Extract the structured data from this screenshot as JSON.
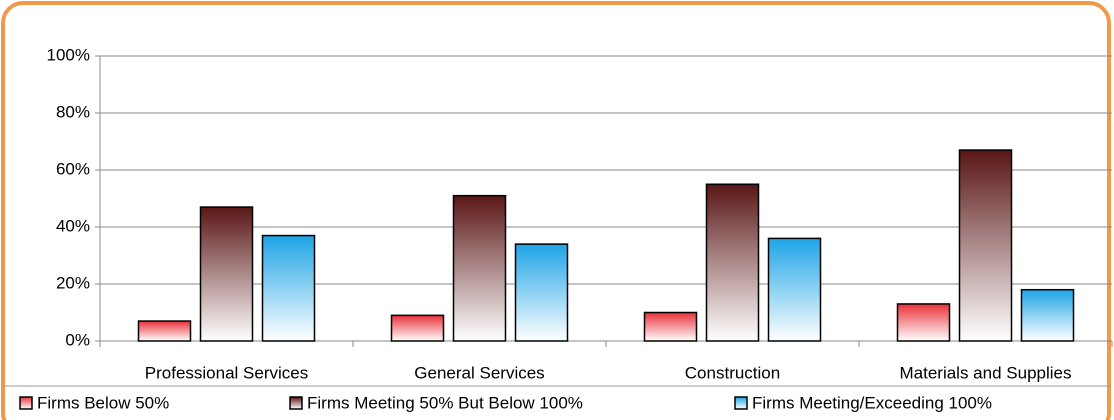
{
  "chart_data": {
    "type": "bar",
    "categories": [
      "Professional Services",
      "General Services",
      "Construction",
      "Materials and Supplies"
    ],
    "series": [
      {
        "name": "Firms Below 50%",
        "color": "#e8323a",
        "values": [
          7,
          9,
          10,
          13
        ]
      },
      {
        "name": "Firms Meeting 50% But Below 100%",
        "color": "#5a1616",
        "values": [
          47,
          51,
          55,
          67
        ]
      },
      {
        "name": "Firms Meeting/Exceeding 100%",
        "color": "#1ea4e6",
        "values": [
          37,
          34,
          36,
          18
        ]
      }
    ],
    "ylim": [
      0,
      100
    ],
    "yticks": [
      {
        "value": 0,
        "label": "0%"
      },
      {
        "value": 20,
        "label": "20%"
      },
      {
        "value": 40,
        "label": "40%"
      },
      {
        "value": 60,
        "label": "60%"
      },
      {
        "value": 80,
        "label": "80%"
      },
      {
        "value": 100,
        "label": "100%"
      }
    ],
    "grid": true,
    "legend": "bottom"
  }
}
